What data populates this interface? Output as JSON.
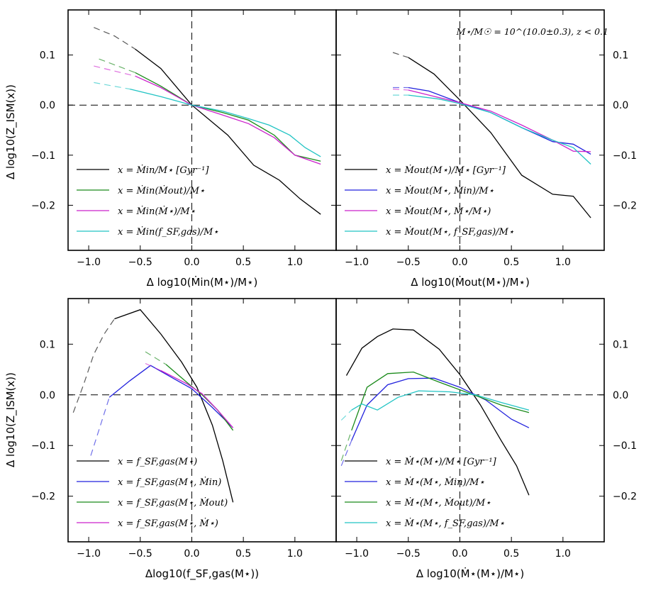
{
  "figure": {
    "annotation": "M⋆/M☉ = 10^(10.0±0.3), z < 0.1",
    "ylabel": "Δ log10(Z_ISM(x))"
  },
  "chart_data": [
    {
      "type": "line",
      "xlabel": "Δ log10(Ṁin(M⋆)/M⋆)",
      "xlim": [
        -1.2,
        1.4
      ],
      "ylim": [
        -0.29,
        0.19
      ],
      "xticks": [
        "−1.0",
        "−0.5",
        "0.0",
        "0.5",
        "1.0"
      ],
      "yticks": [
        "0.1",
        "0.0",
        "−0.1",
        "−0.2"
      ],
      "ytick_side": "left",
      "legend": "lower-left",
      "series": [
        {
          "name": "x = Ṁin/M⋆ [Gyr⁻¹]",
          "color": "#000000",
          "dashed": [
            [
              -0.95,
              0.155
            ],
            [
              -0.75,
              0.138
            ],
            [
              -0.55,
              0.112
            ]
          ],
          "solid": [
            [
              -0.55,
              0.112
            ],
            [
              -0.3,
              0.073
            ],
            [
              0.0,
              0.0
            ],
            [
              0.35,
              -0.06
            ],
            [
              0.6,
              -0.12
            ],
            [
              0.85,
              -0.15
            ],
            [
              1.05,
              -0.187
            ],
            [
              1.25,
              -0.218
            ]
          ]
        },
        {
          "name": "x = Ṁin(Ṁout)/M⋆",
          "color": "#1a8a1a",
          "dashed": [
            [
              -0.9,
              0.092
            ],
            [
              -0.55,
              0.065
            ]
          ],
          "solid": [
            [
              -0.55,
              0.065
            ],
            [
              -0.3,
              0.038
            ],
            [
              0.0,
              0.0
            ],
            [
              0.3,
              -0.015
            ],
            [
              0.55,
              -0.03
            ],
            [
              0.8,
              -0.06
            ],
            [
              1.0,
              -0.1
            ],
            [
              1.25,
              -0.112
            ]
          ]
        },
        {
          "name": "x = Ṁin(Ṁ⋆)/M⋆",
          "color": "#cc22cc",
          "dashed": [
            [
              -0.95,
              0.078
            ],
            [
              -0.55,
              0.058
            ]
          ],
          "solid": [
            [
              -0.55,
              0.058
            ],
            [
              -0.3,
              0.035
            ],
            [
              0.0,
              0.0
            ],
            [
              0.3,
              -0.02
            ],
            [
              0.55,
              -0.037
            ],
            [
              0.8,
              -0.065
            ],
            [
              1.0,
              -0.1
            ],
            [
              1.25,
              -0.118
            ]
          ]
        },
        {
          "name": "x = Ṁin(f_SF,gas)/M⋆",
          "color": "#22c4c4",
          "dashed": [
            [
              -0.95,
              0.045
            ],
            [
              -0.6,
              0.032
            ]
          ],
          "solid": [
            [
              -0.6,
              0.032
            ],
            [
              -0.3,
              0.017
            ],
            [
              0.0,
              0.0
            ],
            [
              0.3,
              -0.012
            ],
            [
              0.55,
              -0.027
            ],
            [
              0.75,
              -0.04
            ],
            [
              0.95,
              -0.06
            ],
            [
              1.1,
              -0.085
            ],
            [
              1.25,
              -0.103
            ]
          ]
        }
      ]
    },
    {
      "type": "line",
      "xlabel": "Δ log10(Ṁout(M⋆)/M⋆)",
      "xlim": [
        -1.2,
        1.4
      ],
      "ylim": [
        -0.29,
        0.19
      ],
      "xticks": [
        "−1.0",
        "−0.5",
        "0.0",
        "0.5",
        "1.0"
      ],
      "yticks": [
        "0.1",
        "0.0",
        "−0.1",
        "−0.2"
      ],
      "ytick_side": "right",
      "legend": "lower-left",
      "series": [
        {
          "name": "x = Ṁout(M⋆)/M⋆ [Gyr⁻¹]",
          "color": "#000000",
          "dashed": [
            [
              -0.65,
              0.105
            ],
            [
              -0.5,
              0.095
            ]
          ],
          "solid": [
            [
              -0.5,
              0.095
            ],
            [
              -0.25,
              0.062
            ],
            [
              0.0,
              0.01
            ],
            [
              0.3,
              -0.055
            ],
            [
              0.6,
              -0.14
            ],
            [
              0.9,
              -0.178
            ],
            [
              1.1,
              -0.182
            ],
            [
              1.27,
              -0.225
            ]
          ]
        },
        {
          "name": "x = Ṁout(M⋆, Ṁin)/M⋆",
          "color": "#2222dd",
          "dashed": [
            [
              -0.65,
              0.035
            ],
            [
              -0.5,
              0.035
            ]
          ],
          "solid": [
            [
              -0.5,
              0.035
            ],
            [
              -0.3,
              0.028
            ],
            [
              0.0,
              0.005
            ],
            [
              0.3,
              -0.015
            ],
            [
              0.6,
              -0.045
            ],
            [
              0.9,
              -0.073
            ],
            [
              1.1,
              -0.078
            ],
            [
              1.27,
              -0.098
            ]
          ]
        },
        {
          "name": "x = Ṁout(M⋆, Ṁ⋆/M⋆)",
          "color": "#cc22cc",
          "dashed": [
            [
              -0.65,
              0.032
            ],
            [
              -0.5,
              0.03
            ]
          ],
          "solid": [
            [
              -0.5,
              0.03
            ],
            [
              -0.3,
              0.02
            ],
            [
              0.0,
              0.005
            ],
            [
              0.3,
              -0.012
            ],
            [
              0.6,
              -0.04
            ],
            [
              0.9,
              -0.07
            ],
            [
              1.1,
              -0.092
            ],
            [
              1.27,
              -0.093
            ]
          ]
        },
        {
          "name": "x = Ṁout(M⋆, f_SF,gas)/M⋆",
          "color": "#22c4c4",
          "dashed": [
            [
              -0.65,
              0.02
            ],
            [
              -0.5,
              0.02
            ]
          ],
          "solid": [
            [
              -0.5,
              0.02
            ],
            [
              -0.2,
              0.012
            ],
            [
              0.0,
              0.003
            ],
            [
              0.3,
              -0.015
            ],
            [
              0.6,
              -0.045
            ],
            [
              0.9,
              -0.07
            ],
            [
              1.1,
              -0.085
            ],
            [
              1.27,
              -0.118
            ]
          ]
        }
      ]
    },
    {
      "type": "line",
      "xlabel": "Δlog10(f_SF,gas(M⋆))",
      "xlim": [
        -1.2,
        1.4
      ],
      "ylim": [
        -0.29,
        0.19
      ],
      "xticks": [
        "−1.0",
        "−0.5",
        "0.0",
        "0.5",
        "1.0"
      ],
      "yticks": [
        "0.1",
        "0.0",
        "−0.1",
        "−0.2"
      ],
      "ytick_side": "left",
      "legend": "lower-left",
      "series": [
        {
          "name": "x = f_SF,gas(M⋆)",
          "color": "#000000",
          "dashed": [
            [
              -1.15,
              -0.035
            ],
            [
              -1.05,
              0.02
            ],
            [
              -0.95,
              0.08
            ],
            [
              -0.85,
              0.12
            ],
            [
              -0.75,
              0.15
            ]
          ],
          "solid": [
            [
              -0.75,
              0.15
            ],
            [
              -0.5,
              0.168
            ],
            [
              -0.3,
              0.12
            ],
            [
              -0.1,
              0.065
            ],
            [
              0.05,
              0.015
            ],
            [
              0.2,
              -0.06
            ],
            [
              0.3,
              -0.13
            ],
            [
              0.4,
              -0.212
            ]
          ]
        },
        {
          "name": "x = f_SF,gas(M⋆, Ṁin)",
          "color": "#2222dd",
          "dashed": [
            [
              -0.98,
              -0.12
            ],
            [
              -0.8,
              -0.005
            ]
          ],
          "solid": [
            [
              -0.8,
              -0.005
            ],
            [
              -0.6,
              0.028
            ],
            [
              -0.4,
              0.058
            ],
            [
              -0.2,
              0.035
            ],
            [
              0.0,
              0.012
            ],
            [
              0.2,
              -0.025
            ],
            [
              0.4,
              -0.065
            ]
          ]
        },
        {
          "name": "x = f_SF,gas(M⋆, Ṁout)",
          "color": "#1a8a1a",
          "dashed": [
            [
              -0.45,
              0.085
            ],
            [
              -0.25,
              0.06
            ]
          ],
          "solid": [
            [
              -0.25,
              0.06
            ],
            [
              -0.05,
              0.025
            ],
            [
              0.1,
              0.0
            ],
            [
              0.25,
              -0.03
            ],
            [
              0.4,
              -0.07
            ]
          ]
        },
        {
          "name": "x = f_SF,gas(M⋆, Ṁ⋆)",
          "color": "#cc22cc",
          "dashed": [
            [
              -0.45,
              0.062
            ],
            [
              -0.3,
              0.048
            ]
          ],
          "solid": [
            [
              -0.3,
              0.048
            ],
            [
              -0.05,
              0.022
            ],
            [
              0.1,
              0.002
            ],
            [
              0.25,
              -0.03
            ],
            [
              0.4,
              -0.065
            ]
          ]
        }
      ]
    },
    {
      "type": "line",
      "xlabel": "Δ log10(Ṁ⋆(M⋆)/M⋆)",
      "xlim": [
        -1.2,
        1.4
      ],
      "ylim": [
        -0.29,
        0.19
      ],
      "xticks": [
        "−1.0",
        "−0.5",
        "0.0",
        "0.5",
        "1.0"
      ],
      "yticks": [
        "0.1",
        "0.0",
        "−0.1",
        "−0.2"
      ],
      "ytick_side": "right",
      "legend": "lower-left",
      "series": [
        {
          "name": "x = Ṁ⋆(M⋆)/M⋆ [Gyr⁻¹]",
          "color": "#000000",
          "dashed": [],
          "solid": [
            [
              -1.1,
              0.038
            ],
            [
              -0.95,
              0.092
            ],
            [
              -0.8,
              0.115
            ],
            [
              -0.65,
              0.13
            ],
            [
              -0.45,
              0.128
            ],
            [
              -0.2,
              0.09
            ],
            [
              0.0,
              0.04
            ],
            [
              0.2,
              -0.02
            ],
            [
              0.4,
              -0.09
            ],
            [
              0.55,
              -0.14
            ],
            [
              0.67,
              -0.198
            ]
          ]
        },
        {
          "name": "x = Ṁ⋆(M⋆, Ṁin)/M⋆",
          "color": "#2222dd",
          "dashed": [
            [
              -1.15,
              -0.14
            ],
            [
              -1.05,
              -0.09
            ]
          ],
          "solid": [
            [
              -1.05,
              -0.09
            ],
            [
              -0.9,
              -0.02
            ],
            [
              -0.7,
              0.02
            ],
            [
              -0.5,
              0.032
            ],
            [
              -0.25,
              0.033
            ],
            [
              0.0,
              0.015
            ],
            [
              0.25,
              -0.01
            ],
            [
              0.5,
              -0.048
            ],
            [
              0.67,
              -0.065
            ]
          ]
        },
        {
          "name": "x = Ṁ⋆(M⋆, Ṁout)/M⋆",
          "color": "#1a8a1a",
          "dashed": [
            [
              -1.15,
              -0.13
            ],
            [
              -1.05,
              -0.07
            ]
          ],
          "solid": [
            [
              -1.05,
              -0.07
            ],
            [
              -0.9,
              0.015
            ],
            [
              -0.7,
              0.042
            ],
            [
              -0.45,
              0.045
            ],
            [
              -0.2,
              0.025
            ],
            [
              0.0,
              0.01
            ],
            [
              0.2,
              -0.005
            ],
            [
              0.4,
              -0.02
            ],
            [
              0.67,
              -0.035
            ]
          ]
        },
        {
          "name": "x = Ṁ⋆(M⋆, f_SF,gas)/M⋆",
          "color": "#22c4c4",
          "dashed": [
            [
              -1.15,
              -0.05
            ],
            [
              -1.05,
              -0.03
            ]
          ],
          "solid": [
            [
              -1.05,
              -0.03
            ],
            [
              -0.95,
              -0.018
            ],
            [
              -0.8,
              -0.03
            ],
            [
              -0.6,
              -0.005
            ],
            [
              -0.4,
              0.008
            ],
            [
              -0.1,
              0.006
            ],
            [
              0.15,
              0.0
            ],
            [
              0.4,
              -0.015
            ],
            [
              0.67,
              -0.03
            ]
          ]
        }
      ]
    }
  ]
}
